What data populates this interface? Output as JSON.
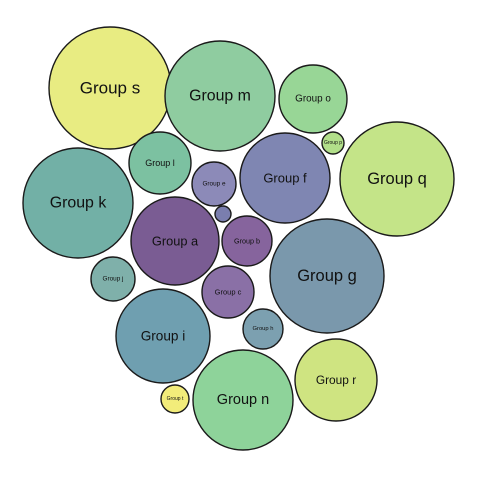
{
  "chart_data": {
    "type": "bubble-packing",
    "title": "",
    "value_note": "values are relative circle areas (radius squared), unitless",
    "groups": [
      {
        "label": "Group s",
        "value": 3721,
        "color": "#e8ec82"
      },
      {
        "label": "Group m",
        "value": 3025,
        "color": "#8fcca0"
      },
      {
        "label": "Group o",
        "value": 1156,
        "color": "#98d696"
      },
      {
        "label": "Group p",
        "value": 121,
        "color": "#b2df8a"
      },
      {
        "label": "Group q",
        "value": 3249,
        "color": "#c4e488"
      },
      {
        "label": "Group l",
        "value": 961,
        "color": "#7cc1a1"
      },
      {
        "label": "Group e",
        "value": 484,
        "color": "#8c8ab8"
      },
      {
        "label": "Group f",
        "value": 2025,
        "color": "#7f86b2"
      },
      {
        "label": "Group k",
        "value": 3025,
        "color": "#72b0a6"
      },
      {
        "label": "",
        "value": 64,
        "color": "#7a7eae"
      },
      {
        "label": "Group a",
        "value": 1936,
        "color": "#7a5c93"
      },
      {
        "label": "Group b",
        "value": 625,
        "color": "#86649d"
      },
      {
        "label": "Group g",
        "value": 3249,
        "color": "#7a98ac"
      },
      {
        "label": "Group j",
        "value": 484,
        "color": "#7fb0aa"
      },
      {
        "label": "Group c",
        "value": 676,
        "color": "#8a70a6"
      },
      {
        "label": "Group h",
        "value": 400,
        "color": "#7ca0b0"
      },
      {
        "label": "Group i",
        "value": 2209,
        "color": "#6f9fb0"
      },
      {
        "label": "Group r",
        "value": 1681,
        "color": "#cfe481"
      },
      {
        "label": "Group t",
        "value": 196,
        "color": "#f2ec7a"
      },
      {
        "label": "Group n",
        "value": 2500,
        "color": "#8ed39a"
      }
    ]
  }
}
